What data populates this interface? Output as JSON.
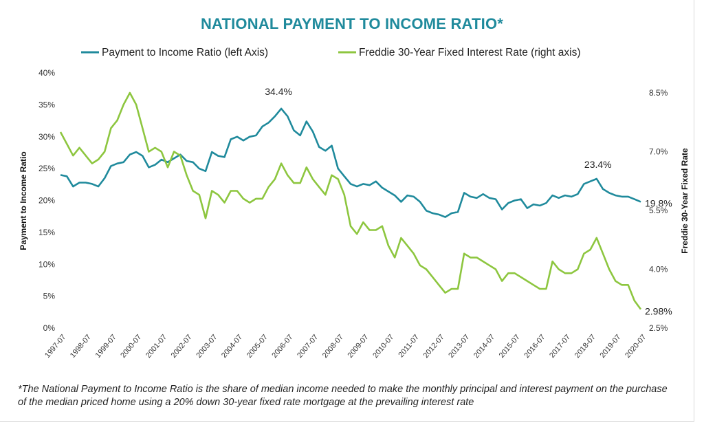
{
  "chart_data": {
    "type": "line",
    "title": "NATIONAL PAYMENT TO INCOME RATIO*",
    "ylabel_left": "Payment to Income Ratio",
    "ylabel_right": "Freddie 30-Year Fixed Rate",
    "ylim_left": [
      0,
      40
    ],
    "ylim_right": [
      2.5,
      8.5
    ],
    "left_ticks": [
      "0%",
      "5%",
      "10%",
      "15%",
      "20%",
      "25%",
      "30%",
      "35%",
      "40%"
    ],
    "right_ticks": [
      "2.5%",
      "4.0%",
      "5.5%",
      "7.0%",
      "8.5%"
    ],
    "x_ticks": [
      "1997-07",
      "1998-07",
      "1999-07",
      "2000-07",
      "2001-07",
      "2002-07",
      "2003-07",
      "2004-07",
      "2005-07",
      "2006-07",
      "2007-07",
      "2008-07",
      "2009-07",
      "2010-07",
      "2011-07",
      "2012-07",
      "2013-07",
      "2014-07",
      "2015-07",
      "2016-07",
      "2017-07",
      "2018-07",
      "2019-07",
      "2020-07"
    ],
    "legend_position": "top",
    "grid": false,
    "colors": {
      "ratio": "#1f8a9c",
      "rate": "#8dc63f",
      "title": "#1f8a9c"
    },
    "series": [
      {
        "name": "Payment to Income Ratio (left Axis)",
        "axis": "left",
        "color": "#1f8a9c",
        "x": [
          1997.5,
          1997.75,
          1998.0,
          1998.25,
          1998.5,
          1998.75,
          1999.0,
          1999.25,
          1999.5,
          1999.75,
          2000.0,
          2000.25,
          2000.5,
          2000.75,
          2001.0,
          2001.25,
          2001.5,
          2001.75,
          2002.0,
          2002.25,
          2002.5,
          2002.75,
          2003.0,
          2003.25,
          2003.5,
          2003.75,
          2004.0,
          2004.25,
          2004.5,
          2004.75,
          2005.0,
          2005.25,
          2005.5,
          2005.75,
          2006.0,
          2006.25,
          2006.5,
          2006.75,
          2007.0,
          2007.25,
          2007.5,
          2007.75,
          2008.0,
          2008.25,
          2008.5,
          2008.75,
          2009.0,
          2009.25,
          2009.5,
          2009.75,
          2010.0,
          2010.25,
          2010.5,
          2010.75,
          2011.0,
          2011.25,
          2011.5,
          2011.75,
          2012.0,
          2012.25,
          2012.5,
          2012.75,
          2013.0,
          2013.25,
          2013.5,
          2013.75,
          2014.0,
          2014.25,
          2014.5,
          2014.75,
          2015.0,
          2015.25,
          2015.5,
          2015.75,
          2016.0,
          2016.25,
          2016.5,
          2016.75,
          2017.0,
          2017.25,
          2017.5,
          2017.75,
          2018.0,
          2018.25,
          2018.5,
          2018.75,
          2019.0,
          2019.25,
          2019.5,
          2019.75,
          2020.0,
          2020.25,
          2020.5
        ],
        "values": [
          24.0,
          23.8,
          22.2,
          22.8,
          22.8,
          22.6,
          22.2,
          23.5,
          25.4,
          25.8,
          26.0,
          27.2,
          27.6,
          27.0,
          25.2,
          25.6,
          26.4,
          26.0,
          26.6,
          27.2,
          26.2,
          26.0,
          25.0,
          24.6,
          27.6,
          27.0,
          26.8,
          29.6,
          30.0,
          29.4,
          30.0,
          30.2,
          31.6,
          32.2,
          33.2,
          34.4,
          33.2,
          31.0,
          30.2,
          32.4,
          30.8,
          28.4,
          27.8,
          28.6,
          25.0,
          23.8,
          22.6,
          22.2,
          22.6,
          22.4,
          23.0,
          22.0,
          21.4,
          20.8,
          19.8,
          20.8,
          20.6,
          19.8,
          18.4,
          18.0,
          17.8,
          17.4,
          18.0,
          18.2,
          21.2,
          20.6,
          20.4,
          21.0,
          20.4,
          20.2,
          18.6,
          19.6,
          20.0,
          20.2,
          18.8,
          19.4,
          19.2,
          19.6,
          20.8,
          20.4,
          20.8,
          20.6,
          21.0,
          22.6,
          23.0,
          23.4,
          21.8,
          21.2,
          20.8,
          20.6,
          20.6,
          20.2,
          19.8
        ]
      },
      {
        "name": "Freddie 30-Year Fixed Interest Rate (right axis)",
        "axis": "right",
        "color": "#8dc63f",
        "x": [
          1997.5,
          1997.75,
          1998.0,
          1998.25,
          1998.5,
          1998.75,
          1999.0,
          1999.25,
          1999.5,
          1999.75,
          2000.0,
          2000.25,
          2000.5,
          2000.75,
          2001.0,
          2001.25,
          2001.5,
          2001.75,
          2002.0,
          2002.25,
          2002.5,
          2002.75,
          2003.0,
          2003.25,
          2003.5,
          2003.75,
          2004.0,
          2004.25,
          2004.5,
          2004.75,
          2005.0,
          2005.25,
          2005.5,
          2005.75,
          2006.0,
          2006.25,
          2006.5,
          2006.75,
          2007.0,
          2007.25,
          2007.5,
          2007.75,
          2008.0,
          2008.25,
          2008.5,
          2008.75,
          2009.0,
          2009.25,
          2009.5,
          2009.75,
          2010.0,
          2010.25,
          2010.5,
          2010.75,
          2011.0,
          2011.25,
          2011.5,
          2011.75,
          2012.0,
          2012.25,
          2012.5,
          2012.75,
          2013.0,
          2013.25,
          2013.5,
          2013.75,
          2014.0,
          2014.25,
          2014.5,
          2014.75,
          2015.0,
          2015.25,
          2015.5,
          2015.75,
          2016.0,
          2016.25,
          2016.5,
          2016.75,
          2017.0,
          2017.25,
          2017.5,
          2017.75,
          2018.0,
          2018.25,
          2018.5,
          2018.75,
          2019.0,
          2019.25,
          2019.5,
          2019.75,
          2020.0,
          2020.25,
          2020.5
        ],
        "values": [
          7.5,
          7.2,
          6.9,
          7.1,
          6.9,
          6.7,
          6.8,
          7.0,
          7.6,
          7.8,
          8.2,
          8.5,
          8.2,
          7.6,
          7.0,
          7.1,
          7.0,
          6.6,
          7.0,
          6.9,
          6.4,
          6.0,
          5.9,
          5.3,
          6.0,
          5.9,
          5.7,
          6.0,
          6.0,
          5.8,
          5.7,
          5.8,
          5.8,
          6.1,
          6.3,
          6.7,
          6.4,
          6.2,
          6.2,
          6.6,
          6.3,
          6.1,
          5.9,
          6.4,
          6.3,
          5.9,
          5.1,
          4.9,
          5.2,
          5.0,
          5.0,
          5.1,
          4.6,
          4.3,
          4.8,
          4.6,
          4.4,
          4.1,
          4.0,
          3.8,
          3.6,
          3.4,
          3.5,
          3.5,
          4.4,
          4.3,
          4.3,
          4.2,
          4.1,
          4.0,
          3.7,
          3.9,
          3.9,
          3.8,
          3.7,
          3.6,
          3.5,
          3.5,
          4.2,
          4.0,
          3.9,
          3.9,
          4.0,
          4.4,
          4.5,
          4.8,
          4.4,
          4.0,
          3.7,
          3.6,
          3.6,
          3.2,
          2.98
        ]
      }
    ],
    "annotations": [
      {
        "text": "34.4%",
        "series": 0,
        "x": 2006.25,
        "y": 34.4
      },
      {
        "text": "23.4%",
        "series": 0,
        "x": 2018.75,
        "y": 23.4
      },
      {
        "text": "19.8%",
        "series": 0,
        "x": 2020.5,
        "y": 19.8
      },
      {
        "text": "2.98%",
        "series": 1,
        "x": 2020.5,
        "y": 2.98
      }
    ]
  },
  "footnote": "*The National Payment to Income Ratio is the share of median income needed to make the monthly principal and interest payment on the purchase of the median priced home using a 20% down 30-year fixed rate mortgage at the prevailing interest rate"
}
